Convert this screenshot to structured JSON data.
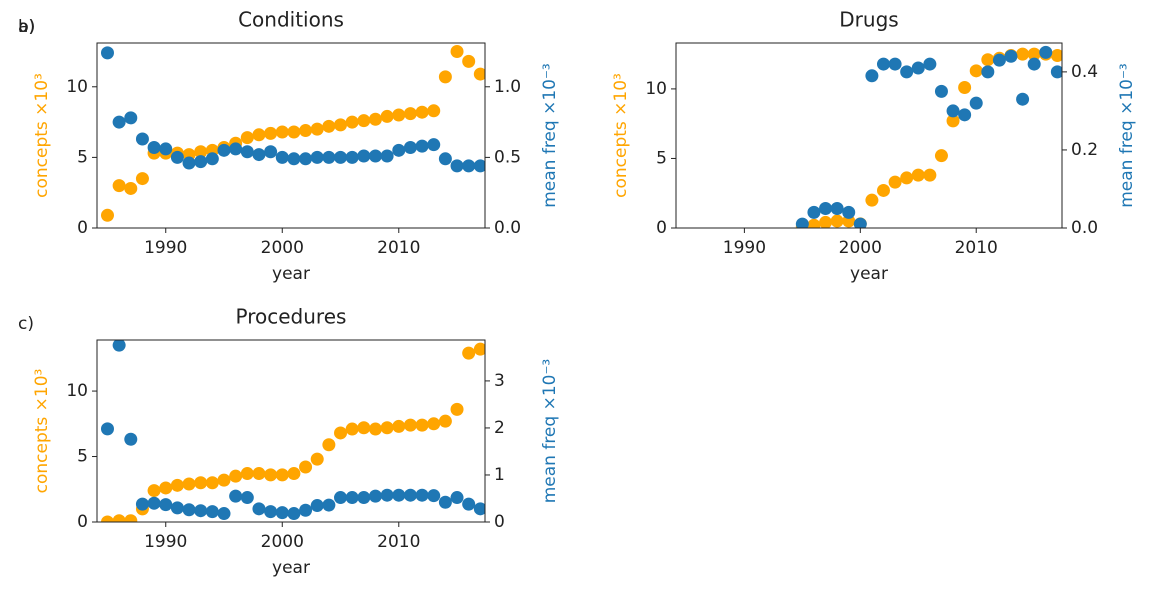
{
  "chart_data": [
    {
      "type": "scatter",
      "panel_label": "a)",
      "title": "Conditions",
      "xlabel": "year",
      "ylabel": "concepts ×10³",
      "y2label": "mean freq ×10⁻³",
      "x": [
        1985,
        1986,
        1987,
        1988,
        1989,
        1990,
        1991,
        1992,
        1993,
        1994,
        1995,
        1996,
        1997,
        1998,
        1999,
        2000,
        2001,
        2002,
        2003,
        2004,
        2005,
        2006,
        2007,
        2008,
        2009,
        2010,
        2011,
        2012,
        2013,
        2014,
        2015,
        2016,
        2017
      ],
      "xlim": [
        1984.1,
        2017.4
      ],
      "xticks": [
        1990,
        2000,
        2010
      ],
      "ylim": [
        0,
        13.1
      ],
      "yticks": [
        0,
        5,
        10
      ],
      "y2lim": [
        0,
        1.31
      ],
      "y2ticks": [
        {
          "value": 0,
          "label": "0.0"
        },
        {
          "value": 0.5,
          "label": "0.5"
        },
        {
          "value": 1,
          "label": "1.0"
        }
      ],
      "series": [
        {
          "color": "#ffa500",
          "values": [
            0.9,
            3.0,
            2.8,
            3.5,
            5.3,
            5.3,
            5.3,
            5.2,
            5.4,
            5.5,
            5.7,
            6.0,
            6.4,
            6.6,
            6.7,
            6.8,
            6.8,
            6.9,
            7.0,
            7.2,
            7.3,
            7.5,
            7.6,
            7.7,
            7.9,
            8.0,
            8.1,
            8.2,
            8.3,
            10.7,
            12.5,
            11.8,
            10.9
          ]
        },
        {
          "color": "#1f77b4",
          "axis": "y2",
          "values": [
            1.24,
            0.75,
            0.78,
            0.63,
            0.57,
            0.56,
            0.5,
            0.46,
            0.47,
            0.49,
            0.55,
            0.56,
            0.54,
            0.52,
            0.54,
            0.5,
            0.49,
            0.49,
            0.5,
            0.5,
            0.5,
            0.5,
            0.51,
            0.51,
            0.51,
            0.55,
            0.57,
            0.58,
            0.59,
            0.49,
            0.44,
            0.44,
            0.44
          ]
        }
      ]
    },
    {
      "type": "scatter",
      "panel_label": "b)",
      "title": "Drugs",
      "xlabel": "year",
      "ylabel": "concepts ×10³",
      "y2label": "mean freq ×10⁻³",
      "x": [
        1995,
        1996,
        1997,
        1998,
        1999,
        2000,
        2001,
        2002,
        2003,
        2004,
        2005,
        2006,
        2007,
        2008,
        2009,
        2010,
        2011,
        2012,
        2013,
        2014,
        2015,
        2016,
        2017
      ],
      "xlim": [
        1984.1,
        2017.4
      ],
      "xticks": [
        1990,
        2000,
        2010
      ],
      "ylim": [
        0,
        13.3
      ],
      "yticks": [
        0,
        5,
        10
      ],
      "y2lim": [
        0,
        0.474
      ],
      "y2ticks": [
        {
          "value": 0,
          "label": "0.0"
        },
        {
          "value": 0.2,
          "label": "0.2"
        },
        {
          "value": 0.4,
          "label": "0.4"
        }
      ],
      "series": [
        {
          "color": "#ffa500",
          "values": [
            0.1,
            0.2,
            0.4,
            0.5,
            0.5,
            0.3,
            2.0,
            2.7,
            3.3,
            3.6,
            3.8,
            3.8,
            5.2,
            7.7,
            10.1,
            11.3,
            12.1,
            12.2,
            12.4,
            12.5,
            12.5,
            12.5,
            12.4
          ]
        },
        {
          "color": "#1f77b4",
          "axis": "y2",
          "values": [
            0.01,
            0.04,
            0.05,
            0.05,
            0.04,
            0.01,
            0.39,
            0.42,
            0.42,
            0.4,
            0.41,
            0.42,
            0.35,
            0.3,
            0.29,
            0.32,
            0.4,
            0.43,
            0.44,
            0.33,
            0.42,
            0.45,
            0.4
          ]
        }
      ]
    },
    {
      "type": "scatter",
      "panel_label": "c)",
      "title": "Procedures",
      "xlabel": "year",
      "ylabel": "concepts ×10³",
      "y2label": "mean freq ×10⁻³",
      "x": [
        1985,
        1986,
        1987,
        1988,
        1989,
        1990,
        1991,
        1992,
        1993,
        1994,
        1995,
        1996,
        1997,
        1998,
        1999,
        2000,
        2001,
        2002,
        2003,
        2004,
        2005,
        2006,
        2007,
        2008,
        2009,
        2010,
        2011,
        2012,
        2013,
        2014,
        2015,
        2016,
        2017
      ],
      "xlim": [
        1984.1,
        2017.4
      ],
      "xticks": [
        1990,
        2000,
        2010
      ],
      "ylim": [
        0,
        13.9
      ],
      "yticks": [
        0,
        5,
        10
      ],
      "y2lim": [
        0,
        3.87
      ],
      "y2ticks": [
        0,
        1,
        2,
        3
      ],
      "series": [
        {
          "color": "#ffa500",
          "values": [
            0,
            0.1,
            0.1,
            1.0,
            2.4,
            2.6,
            2.8,
            2.9,
            3.0,
            3.0,
            3.2,
            3.5,
            3.7,
            3.7,
            3.6,
            3.6,
            3.7,
            4.2,
            4.8,
            5.9,
            6.8,
            7.1,
            7.2,
            7.1,
            7.2,
            7.3,
            7.4,
            7.4,
            7.5,
            7.7,
            8.6,
            12.9,
            13.2
          ]
        },
        {
          "color": "#1f77b4",
          "axis": "y2",
          "values": [
            1.98,
            3.76,
            1.76,
            0.38,
            0.4,
            0.37,
            0.3,
            0.26,
            0.24,
            0.22,
            0.18,
            0.55,
            0.52,
            0.28,
            0.22,
            0.2,
            0.18,
            0.25,
            0.35,
            0.36,
            0.52,
            0.52,
            0.52,
            0.55,
            0.57,
            0.57,
            0.57,
            0.57,
            0.56,
            0.42,
            0.52,
            0.38,
            0.28
          ]
        }
      ]
    }
  ]
}
